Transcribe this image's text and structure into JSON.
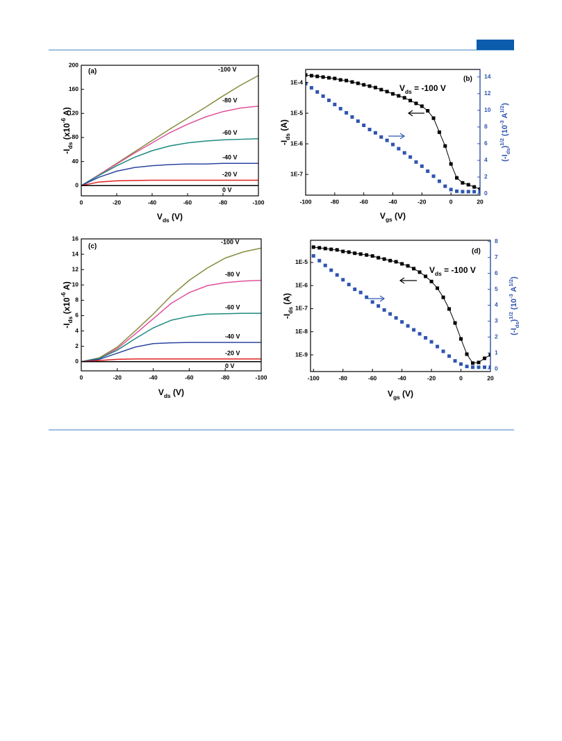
{
  "chart_data": [
    {
      "type": "line",
      "panel_label": "(a)",
      "x": [
        0,
        -10,
        -20,
        -30,
        -40,
        -50,
        -60,
        -70,
        -80,
        -90,
        -100
      ],
      "xlim": [
        0,
        -100
      ],
      "xticks": [
        0,
        -20,
        -40,
        -60,
        -80,
        -100
      ],
      "ylim": [
        -17,
        200
      ],
      "yticks": [
        0,
        40,
        80,
        120,
        160,
        200
      ],
      "xlabel": [
        {
          "text": "V"
        },
        {
          "text": "ds",
          "baseline": "sub"
        },
        {
          "text": " (V)"
        }
      ],
      "ylabel": [
        {
          "text": "-I"
        },
        {
          "text": "ds",
          "baseline": "sub"
        },
        {
          "text": " (x10"
        },
        {
          "text": "-6",
          "baseline": "super"
        },
        {
          "text": " A)"
        }
      ],
      "series": [
        {
          "name": "-100 V",
          "color": "#868b3c",
          "values": [
            0,
            18,
            37,
            56,
            75,
            94,
            112,
            130,
            149,
            167,
            183
          ]
        },
        {
          "name": "-80 V",
          "color": "#e0509a",
          "values": [
            0,
            18,
            36,
            54,
            71,
            88,
            102,
            114,
            123,
            129,
            132
          ]
        },
        {
          "name": "-60 V",
          "color": "#1b8a7c",
          "values": [
            0,
            17,
            33,
            47,
            58,
            66,
            71,
            74,
            76,
            77,
            78
          ]
        },
        {
          "name": "-40 V",
          "color": "#2b45a0",
          "values": [
            0,
            14,
            24,
            30,
            33,
            35,
            36,
            36,
            37,
            37,
            37
          ]
        },
        {
          "name": "-20 V",
          "color": "#e02020",
          "values": [
            0,
            6,
            8,
            8.5,
            9,
            9,
            9,
            9,
            9,
            9,
            9
          ]
        },
        {
          "name": "0 V",
          "color": "#000000",
          "values": [
            0,
            0,
            0,
            0,
            0,
            0,
            0,
            0,
            0,
            0,
            0
          ]
        }
      ]
    },
    {
      "type": "line",
      "panel_label": "(b)",
      "y_scale": "log",
      "marker": "square",
      "x": [
        -100,
        -96,
        -92,
        -88,
        -84,
        -80,
        -76,
        -72,
        -68,
        -64,
        -60,
        -56,
        -52,
        -48,
        -44,
        -40,
        -36,
        -32,
        -28,
        -24,
        -20,
        -16,
        -12,
        -8,
        -4,
        0,
        4,
        8,
        12,
        16,
        20
      ],
      "xlim": [
        -100,
        20
      ],
      "xticks": [
        -100,
        -80,
        -60,
        -40,
        -20,
        0,
        20
      ],
      "ylim": [
        2.1e-08,
        0.00027
      ],
      "yticks": [
        {
          "value": 1e-07,
          "label": "1E-7"
        },
        {
          "value": 1e-06,
          "label": "1E-6"
        },
        {
          "value": 1e-05,
          "label": "1E-5"
        },
        {
          "value": 0.0001,
          "label": "1E-4"
        }
      ],
      "y2lim": [
        -0.17,
        14.9
      ],
      "y2ticks": [
        0,
        2,
        4,
        6,
        8,
        10,
        12,
        14
      ],
      "xlabel": [
        {
          "text": "V"
        },
        {
          "text": "gs",
          "baseline": "sub"
        },
        {
          "text": " (V)"
        }
      ],
      "ylabel": [
        {
          "text": "-I"
        },
        {
          "text": "ds",
          "baseline": "sub"
        },
        {
          "text": " (A)"
        }
      ],
      "y2label": [
        {
          "text": "(-I"
        },
        {
          "text": "ds",
          "baseline": "sub"
        },
        {
          "text": ")"
        },
        {
          "text": "1/2",
          "baseline": "super"
        },
        {
          "text": " (10"
        },
        {
          "text": "-3",
          "baseline": "super"
        },
        {
          "text": " A"
        },
        {
          "text": "1/2",
          "baseline": "super"
        },
        {
          "text": ")"
        }
      ],
      "annotation": [
        {
          "text": "V"
        },
        {
          "text": "ds",
          "baseline": "sub"
        },
        {
          "text": " = -100 V"
        }
      ],
      "series": [
        {
          "color": "#000000",
          "line": true,
          "values": [
            0.000178,
            0.000169,
            0.00016,
            0.000152,
            0.000144,
            0.000137,
            0.000123,
            0.000117,
            0.000105,
            9.5e-05,
            8.5e-05,
            7.7e-05,
            6.9e-05,
            5.9e-05,
            5.1e-05,
            4.3e-05,
            3.7e-05,
            3.2e-05,
            2.6e-05,
            2.1e-05,
            1.7e-05,
            1.2e-05,
            6.9e-06,
            2.4e-06,
            8.5e-07,
            2.2e-07,
            7.7e-08,
            5.3e-08,
            4.6e-08,
            3.9e-08,
            3.3e-08
          ]
        },
        {
          "color": "#2e55b0",
          "line": false,
          "axis": "y2",
          "values": [
            13.2,
            12.7,
            12.2,
            11.7,
            11.2,
            10.7,
            10.2,
            9.7,
            9.2,
            8.7,
            8.2,
            7.7,
            7.3,
            6.8,
            6.4,
            5.9,
            5.4,
            4.9,
            4.4,
            3.8,
            3.3,
            2.7,
            2.1,
            1.5,
            0.9,
            0.5,
            0.3,
            0.25,
            0.25,
            0.25,
            0.25
          ]
        }
      ]
    },
    {
      "type": "line",
      "panel_label": "(c)",
      "x": [
        0,
        -10,
        -20,
        -30,
        -40,
        -50,
        -60,
        -70,
        -80,
        -90,
        -100
      ],
      "xlim": [
        0,
        -100
      ],
      "xticks": [
        0,
        -20,
        -40,
        -60,
        -80,
        -100
      ],
      "ylim": [
        -1.2,
        16
      ],
      "yticks": [
        0,
        2,
        4,
        6,
        8,
        10,
        12,
        14,
        16
      ],
      "xlabel": [
        {
          "text": "V"
        },
        {
          "text": "ds",
          "baseline": "sub"
        },
        {
          "text": " (V)"
        }
      ],
      "ylabel": [
        {
          "text": "-I"
        },
        {
          "text": "ds",
          "baseline": "sub"
        },
        {
          "text": " (x10"
        },
        {
          "text": "-6",
          "baseline": "super"
        },
        {
          "text": " A)"
        }
      ],
      "series": [
        {
          "name": "-100 V",
          "color": "#868b3c",
          "values": [
            0,
            0.5,
            1.9,
            4.0,
            6.2,
            8.6,
            10.6,
            12.2,
            13.5,
            14.3,
            14.8
          ]
        },
        {
          "name": "-80 V",
          "color": "#e0509a",
          "values": [
            0,
            0.4,
            1.7,
            3.6,
            5.6,
            7.6,
            9.0,
            9.9,
            10.3,
            10.5,
            10.6
          ]
        },
        {
          "name": "-60 V",
          "color": "#1b8a7c",
          "values": [
            0,
            0.4,
            1.5,
            3.0,
            4.4,
            5.4,
            5.9,
            6.2,
            6.25,
            6.3,
            6.3
          ]
        },
        {
          "name": "-40 V",
          "color": "#2b45a0",
          "values": [
            0,
            0.3,
            1.1,
            1.9,
            2.35,
            2.45,
            2.5,
            2.5,
            2.5,
            2.5,
            2.5
          ]
        },
        {
          "name": "-20 V",
          "color": "#e02020",
          "values": [
            0,
            0.15,
            0.3,
            0.35,
            0.35,
            0.35,
            0.35,
            0.35,
            0.35,
            0.35,
            0.35
          ]
        },
        {
          "name": "0 V",
          "color": "#000000",
          "values": [
            0,
            0,
            0,
            0,
            0,
            0,
            0,
            0,
            0,
            0,
            0
          ]
        }
      ]
    },
    {
      "type": "line",
      "panel_label": "(d)",
      "y_scale": "log",
      "marker": "square",
      "x": [
        -100,
        -96,
        -92,
        -88,
        -84,
        -80,
        -76,
        -72,
        -68,
        -64,
        -60,
        -56,
        -52,
        -48,
        -44,
        -40,
        -36,
        -32,
        -28,
        -24,
        -20,
        -16,
        -12,
        -8,
        -4,
        0,
        4,
        8,
        12,
        16,
        20
      ],
      "xlim": [
        -102,
        20
      ],
      "xticks": [
        -100,
        -80,
        -60,
        -40,
        -20,
        0,
        20
      ],
      "ylim": [
        1.9e-10,
        9.1e-05
      ],
      "yticks": [
        {
          "value": 1e-09,
          "label": "1E-9"
        },
        {
          "value": 1e-08,
          "label": "1E-8"
        },
        {
          "value": 1e-07,
          "label": "1E-7"
        },
        {
          "value": 1e-06,
          "label": "1E-6"
        },
        {
          "value": 1e-05,
          "label": "1E-5"
        }
      ],
      "y2lim": [
        -0.17,
        8.08
      ],
      "y2ticks": [
        0,
        1,
        2,
        3,
        4,
        5,
        6,
        7,
        8
      ],
      "xlabel": [
        {
          "text": "V"
        },
        {
          "text": "gs",
          "baseline": "sub"
        },
        {
          "text": " (V)"
        }
      ],
      "ylabel": [
        {
          "text": "-I"
        },
        {
          "text": "ds",
          "baseline": "sub"
        },
        {
          "text": " (A)"
        }
      ],
      "y2label": [
        {
          "text": "(-I"
        },
        {
          "text": "ds",
          "baseline": "sub"
        },
        {
          "text": ")"
        },
        {
          "text": "1/2",
          "baseline": "super"
        },
        {
          "text": " (10"
        },
        {
          "text": "-3",
          "baseline": "super"
        },
        {
          "text": " A"
        },
        {
          "text": "1/2",
          "baseline": "super"
        },
        {
          "text": ")"
        }
      ],
      "annotation": [
        {
          "text": "V"
        },
        {
          "text": "ds",
          "baseline": "sub"
        },
        {
          "text": " = -100 V"
        }
      ],
      "series": [
        {
          "color": "#000000",
          "line": true,
          "values": [
            4.6e-05,
            4.3e-05,
            4e-05,
            3.7e-05,
            3.5e-05,
            3e-05,
            2.8e-05,
            2.5e-05,
            2.3e-05,
            2.1e-05,
            1.9e-05,
            1.6e-05,
            1.4e-05,
            1.2e-05,
            1.07e-05,
            8.7e-06,
            7.1e-06,
            5.4e-06,
            3.8e-06,
            2.5e-06,
            1.5e-06,
            7.7e-07,
            3.1e-07,
            9.7e-08,
            2.4e-08,
            4.9e-09,
            1.07e-09,
            4.4e-10,
            4.7e-10,
            7.1e-10,
            1e-09
          ]
        },
        {
          "color": "#2e55b0",
          "line": false,
          "axis": "y2",
          "values": [
            7.1,
            6.8,
            6.5,
            6.2,
            5.9,
            5.6,
            5.3,
            5.0,
            4.8,
            4.5,
            4.2,
            3.95,
            3.7,
            3.45,
            3.2,
            2.95,
            2.7,
            2.45,
            2.2,
            1.95,
            1.7,
            1.4,
            1.1,
            0.8,
            0.5,
            0.3,
            0.15,
            0.1,
            0.1,
            0.1,
            0.1
          ]
        }
      ]
    }
  ]
}
